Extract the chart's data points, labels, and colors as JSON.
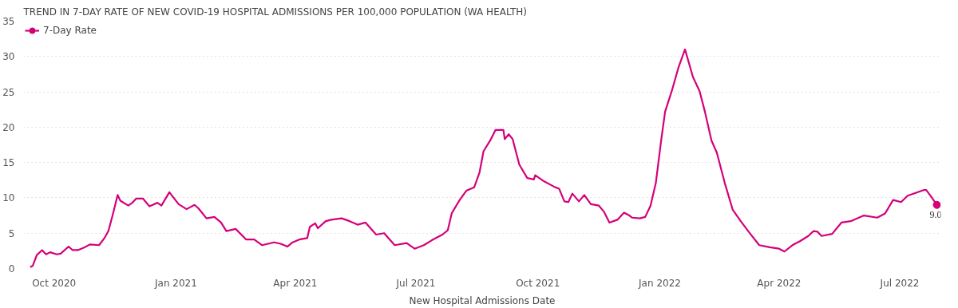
{
  "chart_data": {
    "type": "line",
    "title": "TREND IN 7-DAY RATE OF NEW COVID-19 HOSPITAL ADMISSIONS PER 100,000 POPULATION (WA HEALTH)",
    "xlabel": "New Hospital Admissions Date",
    "legend": "top left",
    "grid": "y",
    "line_style": "solid",
    "xlim": [
      "2020-09-08",
      "2022-08-01"
    ],
    "ylim": [
      0,
      35
    ],
    "yticks": [
      0,
      5,
      10,
      15,
      20,
      25,
      30,
      35
    ],
    "xticks": [
      {
        "value": "2020-10-01",
        "label": "Oct 2020"
      },
      {
        "value": "2021-01-01",
        "label": "Jan 2021"
      },
      {
        "value": "2021-04-01",
        "label": "Apr 2021"
      },
      {
        "value": "2021-07-01",
        "label": "Jul 2021"
      },
      {
        "value": "2021-10-01",
        "label": "Oct 2021"
      },
      {
        "value": "2022-01-01",
        "label": "Jan 2022"
      },
      {
        "value": "2022-04-01",
        "label": "Apr 2022"
      },
      {
        "value": "2022-07-01",
        "label": "Jul 2022"
      }
    ],
    "x": [
      "2020-09-13",
      "2020-09-15",
      "2020-09-18",
      "2020-09-22",
      "2020-09-25",
      "2020-09-28",
      "2020-10-03",
      "2020-10-06",
      "2020-10-12",
      "2020-10-15",
      "2020-10-19",
      "2020-10-24",
      "2020-10-28",
      "2020-11-04",
      "2020-11-08",
      "2020-11-11",
      "2020-11-14",
      "2020-11-18",
      "2020-11-20",
      "2020-11-26",
      "2020-11-29",
      "2020-12-02",
      "2020-12-07",
      "2020-12-12",
      "2020-12-18",
      "2020-12-21",
      "2020-12-27",
      "2021-01-03",
      "2021-01-09",
      "2021-01-15",
      "2021-01-18",
      "2021-01-24",
      "2021-01-30",
      "2021-02-04",
      "2021-02-08",
      "2021-02-15",
      "2021-02-23",
      "2021-03-01",
      "2021-03-07",
      "2021-03-16",
      "2021-03-21",
      "2021-03-26",
      "2021-03-30",
      "2021-04-04",
      "2021-04-10",
      "2021-04-12",
      "2021-04-16",
      "2021-04-18",
      "2021-04-24",
      "2021-04-28",
      "2021-05-06",
      "2021-05-12",
      "2021-05-18",
      "2021-05-24",
      "2021-06-01",
      "2021-06-07",
      "2021-06-15",
      "2021-06-24",
      "2021-06-30",
      "2021-07-07",
      "2021-07-13",
      "2021-07-21",
      "2021-07-25",
      "2021-07-28",
      "2021-08-03",
      "2021-08-08",
      "2021-08-14",
      "2021-08-18",
      "2021-08-21",
      "2021-08-26",
      "2021-08-30",
      "2021-09-05",
      "2021-09-06",
      "2021-09-09",
      "2021-09-12",
      "2021-09-17",
      "2021-09-23",
      "2021-09-28",
      "2021-09-29",
      "2021-10-06",
      "2021-10-14",
      "2021-10-17",
      "2021-10-21",
      "2021-10-24",
      "2021-10-27",
      "2021-11-01",
      "2021-11-05",
      "2021-11-10",
      "2021-11-16",
      "2021-11-20",
      "2021-11-24",
      "2021-11-30",
      "2021-12-05",
      "2021-12-09",
      "2021-12-11",
      "2021-12-17",
      "2021-12-21",
      "2021-12-25",
      "2021-12-29",
      "2022-01-02",
      "2022-01-05",
      "2022-01-10",
      "2022-01-15",
      "2022-01-20",
      "2022-01-26",
      "2022-01-31",
      "2022-02-04",
      "2022-02-09",
      "2022-02-13",
      "2022-02-19",
      "2022-02-25",
      "2022-03-03",
      "2022-03-09",
      "2022-03-17",
      "2022-03-25",
      "2022-04-01",
      "2022-04-05",
      "2022-04-11",
      "2022-04-17",
      "2022-04-23",
      "2022-04-27",
      "2022-04-30",
      "2022-05-03",
      "2022-05-11",
      "2022-05-18",
      "2022-05-25",
      "2022-06-04",
      "2022-06-14",
      "2022-06-20",
      "2022-06-26",
      "2022-07-02",
      "2022-07-07",
      "2022-07-13",
      "2022-07-19",
      "2022-07-21",
      "2022-07-25",
      "2022-07-29"
    ],
    "series": [
      {
        "name": "7-Day Rate",
        "color": "#d4007a",
        "values": [
          0.2,
          0.4,
          1.9,
          2.6,
          2.0,
          2.3,
          2.0,
          2.1,
          3.1,
          2.6,
          2.6,
          3.0,
          3.4,
          3.3,
          4.3,
          5.3,
          7.4,
          10.4,
          9.6,
          8.9,
          9.3,
          9.9,
          9.9,
          8.8,
          9.3,
          8.9,
          10.8,
          9.1,
          8.4,
          9.0,
          8.5,
          7.1,
          7.3,
          6.5,
          5.3,
          5.6,
          4.1,
          4.1,
          3.3,
          3.7,
          3.5,
          3.1,
          3.7,
          4.1,
          4.3,
          5.9,
          6.4,
          5.7,
          6.7,
          6.9,
          7.1,
          6.7,
          6.2,
          6.5,
          4.8,
          5.0,
          3.3,
          3.6,
          2.8,
          3.3,
          4.0,
          4.8,
          5.4,
          7.8,
          9.7,
          11.0,
          11.5,
          13.6,
          16.6,
          18.1,
          19.6,
          19.6,
          18.3,
          19.0,
          18.3,
          14.7,
          12.8,
          12.6,
          13.2,
          12.3,
          11.5,
          11.3,
          9.5,
          9.4,
          10.6,
          9.5,
          10.4,
          9.1,
          8.9,
          8.0,
          6.5,
          6.9,
          7.9,
          7.5,
          7.2,
          7.1,
          7.3,
          8.9,
          12.1,
          18.1,
          22.2,
          25.1,
          28.4,
          31.0,
          27.1,
          25.1,
          22.2,
          18.1,
          16.4,
          12.1,
          8.3,
          6.7,
          5.2,
          3.3,
          3.0,
          2.8,
          2.4,
          3.3,
          3.9,
          4.6,
          5.3,
          5.2,
          4.6,
          4.9,
          6.5,
          6.7,
          7.5,
          7.2,
          7.8,
          9.7,
          9.4,
          10.3,
          10.7,
          11.1,
          11.1,
          10.1,
          9.0
        ],
        "value_labels": [
          null,
          null,
          null,
          null,
          null,
          null,
          null,
          null,
          null,
          null,
          null,
          null,
          null,
          null,
          null,
          null,
          null,
          null,
          null,
          null,
          null,
          null,
          null,
          null,
          null,
          null,
          null,
          null,
          null,
          null,
          null,
          null,
          null,
          null,
          null,
          null,
          null,
          null,
          null,
          null,
          null,
          null,
          null,
          null,
          null,
          null,
          null,
          null,
          null,
          null,
          null,
          null,
          null,
          null,
          null,
          null,
          null,
          null,
          null,
          null,
          null,
          null,
          null,
          null,
          null,
          null,
          null,
          null,
          null,
          null,
          null,
          null,
          null,
          null,
          null,
          null,
          null,
          null,
          null,
          null,
          null,
          null,
          null,
          null,
          null,
          null,
          null,
          null,
          null,
          null,
          null,
          null,
          null,
          null,
          null,
          null,
          null,
          null,
          null,
          null,
          null,
          null,
          null,
          null,
          null,
          null,
          null,
          null,
          null,
          null,
          null,
          null,
          null,
          null,
          null,
          null,
          null,
          null,
          null,
          null,
          null,
          null,
          null,
          null,
          null,
          null,
          null,
          null,
          null,
          null,
          null,
          null,
          null,
          null,
          null,
          null,
          "9.0"
        ]
      }
    ]
  }
}
